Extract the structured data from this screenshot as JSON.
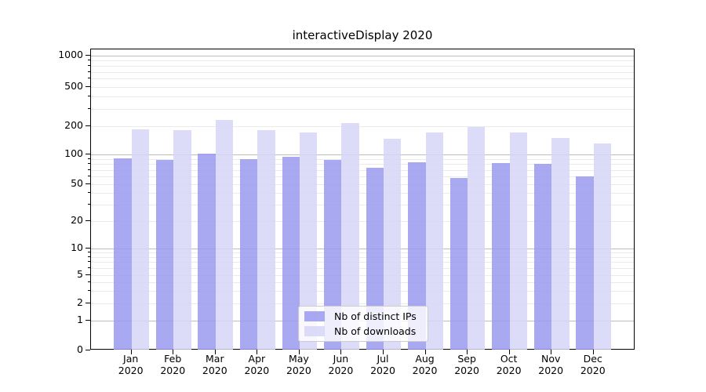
{
  "page_title": "interactiveDisplay 2020",
  "chart_data": {
    "type": "bar",
    "title": "interactiveDisplay 2020",
    "xlabel": "",
    "ylabel": "",
    "year": "2020",
    "months": [
      "Jan",
      "Feb",
      "Mar",
      "Apr",
      "May",
      "Jun",
      "Jul",
      "Aug",
      "Sep",
      "Oct",
      "Nov",
      "Dec"
    ],
    "categories": [
      "Jan 2020",
      "Feb 2020",
      "Mar 2020",
      "Apr 2020",
      "May 2020",
      "Jun 2020",
      "Jul 2020",
      "Aug 2020",
      "Sep 2020",
      "Oct 2020",
      "Nov 2020",
      "Dec 2020"
    ],
    "series": [
      {
        "name": "Nb of distinct IPs",
        "color": "rgba(154,154,240,0.85)",
        "values": [
          92,
          88,
          101,
          90,
          94,
          88,
          73,
          83,
          58,
          82,
          80,
          60
        ]
      },
      {
        "name": "Nb of downloads",
        "color": "rgba(214,214,247,0.85)",
        "values": [
          185,
          182,
          230,
          182,
          170,
          215,
          147,
          170,
          195,
          170,
          149,
          130
        ]
      }
    ],
    "yscale": "symlog",
    "yticks": [
      0,
      1,
      2,
      5,
      10,
      20,
      50,
      100,
      200,
      500,
      1000
    ],
    "ylim": [
      0,
      1000
    ],
    "grid": "horizontal log grid, minor lines light gray, major decade lines darker gray",
    "legend_position": "lower center"
  },
  "colors": {
    "background": "#ffffff",
    "axis": "#000000",
    "grid_minor": "#ebebeb",
    "grid_major": "#bdbdbd",
    "legend_border": "#cccccc"
  }
}
